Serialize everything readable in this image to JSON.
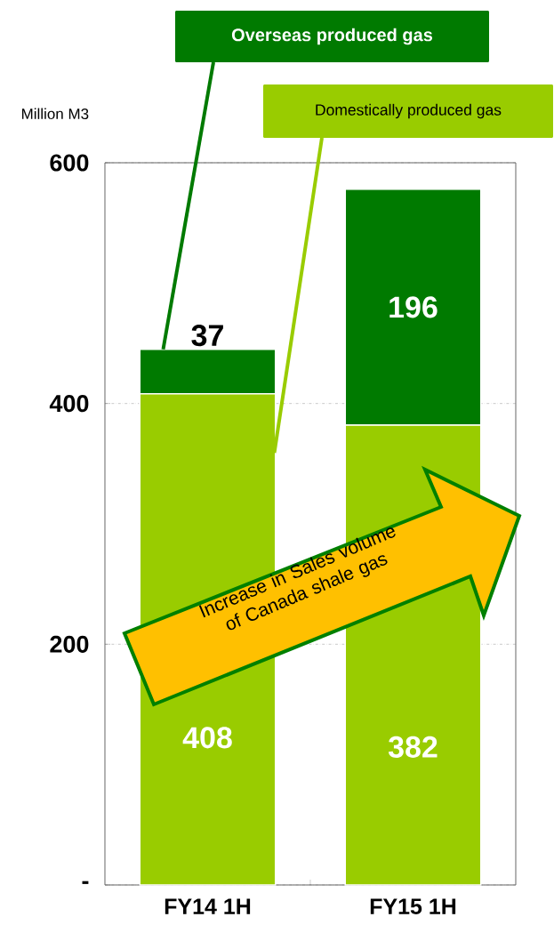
{
  "chart_data": {
    "type": "bar",
    "stacked": true,
    "categories": [
      "FY14 1H",
      "FY15 1H"
    ],
    "series": [
      {
        "name": "Domestically produced gas",
        "color": "#99cc00",
        "values": [
          408,
          382
        ]
      },
      {
        "name": "Overseas produced gas",
        "color": "#007a00",
        "values": [
          37,
          196
        ]
      }
    ],
    "ylabel": "Million M3",
    "ylim": [
      0,
      600
    ],
    "yticks": [
      {
        "value": 0,
        "label": "-"
      },
      200,
      400,
      600
    ],
    "grid": "y",
    "legend": "top",
    "data_labels": true,
    "annotations": [
      "Increase in Sales volume of Canada shale gas"
    ]
  }
}
